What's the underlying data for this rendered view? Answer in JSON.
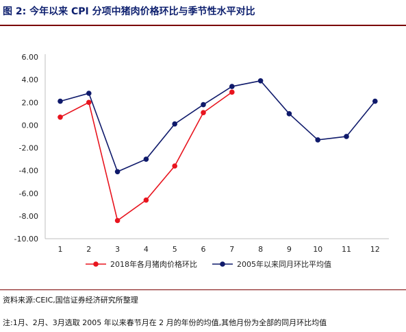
{
  "figure": {
    "title": "图 2:  今年以来 CPI 分项中猪肉价格环比与季节性水平对比",
    "source": "资料来源:CEIC,国信证券经济研究所整理",
    "note": "注:1月、2月、3月选取 2005 年以来春节月在 2 月的年份的均值,其他月份为全部的同月环比均值"
  },
  "chart_data": {
    "type": "line",
    "x": [
      1,
      2,
      3,
      4,
      5,
      6,
      7,
      8,
      9,
      10,
      11,
      12
    ],
    "ylim": [
      -10,
      6
    ],
    "yticks": [
      "6.00",
      "4.00",
      "2.00",
      "0.00",
      "-2.00",
      "-4.00",
      "-6.00",
      "-8.00",
      "-10.00"
    ],
    "grid": false,
    "legend_position": "bottom",
    "series": [
      {
        "name": "2018年各月猪肉价格环比",
        "color": "#e8141e",
        "values": [
          0.7,
          2.0,
          -8.4,
          -6.6,
          -3.6,
          1.1,
          2.9,
          null,
          null,
          null,
          null,
          null
        ]
      },
      {
        "name": "2005年以来同月环比平均值",
        "color": "#0f1a6b",
        "values": [
          2.1,
          2.8,
          -4.1,
          -3.0,
          0.1,
          1.8,
          3.4,
          3.9,
          1.0,
          -1.3,
          -1.0,
          2.1
        ]
      }
    ]
  }
}
